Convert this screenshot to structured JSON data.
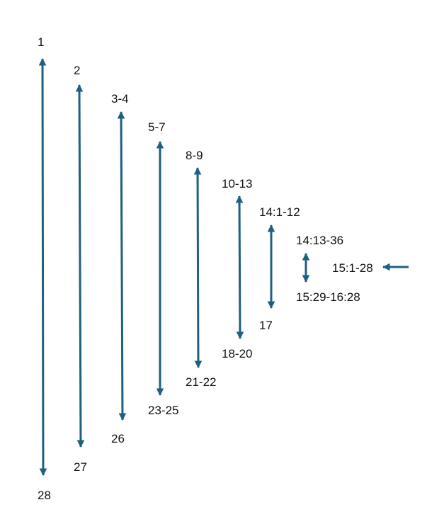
{
  "arrow_color": "#1f5f7f",
  "text_color": "#111111",
  "chiasm_pairs": [
    {
      "top": "1",
      "bottom": "28"
    },
    {
      "top": "2",
      "bottom": "27"
    },
    {
      "top": "3-4",
      "bottom": "26"
    },
    {
      "top": "5-7",
      "bottom": "23-25"
    },
    {
      "top": "8-9",
      "bottom": "21-22"
    },
    {
      "top": "10-13",
      "bottom": "18-20"
    },
    {
      "top": "14:1-12",
      "bottom": "17"
    },
    {
      "top": "14:13-36",
      "bottom": "15:29-16:28"
    }
  ],
  "center": {
    "label": "15:1-28",
    "pointer_icon": "left-arrow-icon"
  }
}
